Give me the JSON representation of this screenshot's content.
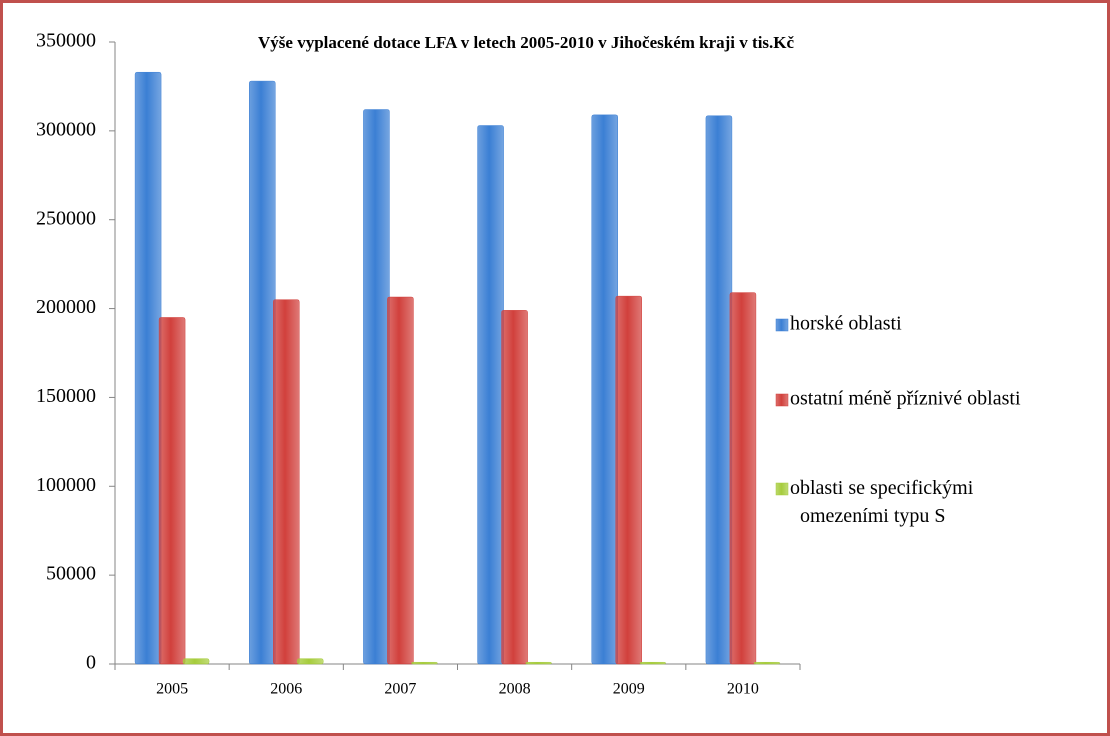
{
  "chart_data": {
    "type": "bar",
    "title": "Výše vyplacené dotace LFA v letech 2005-2010 v Jihočeském kraji v tis.Kč",
    "categories": [
      "2005",
      "2006",
      "2007",
      "2008",
      "2009",
      "2010"
    ],
    "series": [
      {
        "name": "horské oblasti",
        "color": "#3b7fd4",
        "values": [
          333000,
          328000,
          312000,
          303000,
          309000,
          308500
        ]
      },
      {
        "name": "ostatní méně příznivé oblasti",
        "color": "#d1403c",
        "values": [
          195000,
          205000,
          206500,
          199000,
          207000,
          209000
        ]
      },
      {
        "name": "oblasti se specifickými omezeními typu S",
        "color": "#a6cc3c",
        "values": [
          3000,
          3000,
          1000,
          1000,
          1000,
          1000
        ]
      }
    ],
    "ylim": [
      0,
      350000
    ],
    "yticks": [
      0,
      50000,
      100000,
      150000,
      200000,
      250000,
      300000,
      350000
    ],
    "grid": false,
    "legend": "right"
  }
}
